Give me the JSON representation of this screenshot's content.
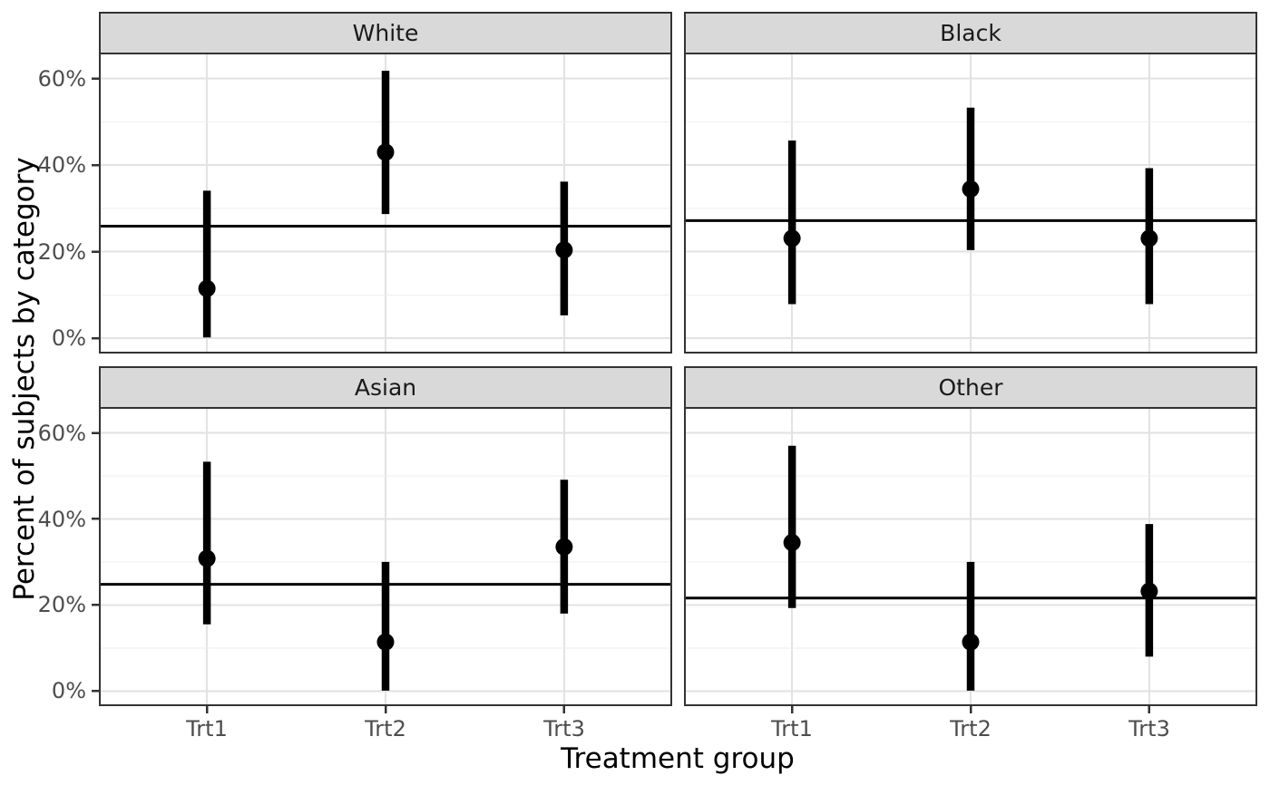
{
  "chart_data": {
    "type": "pointrange",
    "title": "",
    "xlabel": "Treatment group",
    "ylabel": "Percent of subjects by category",
    "x_categories": [
      "Trt1",
      "Trt2",
      "Trt3"
    ],
    "y_ticks": [
      0,
      20,
      40,
      60
    ],
    "y_tick_labels": [
      "0%",
      "20%",
      "40%",
      "60%"
    ],
    "y_minor_ticks": [
      10,
      30,
      50
    ],
    "ylim": [
      -3.3,
      65.8
    ],
    "grid": true,
    "legend": "none",
    "unit": "percent",
    "facets": [
      {
        "label": "White",
        "ref_line": 25.9,
        "points": [
          {
            "x": "Trt1",
            "est": 11.5,
            "lo": 0.2,
            "hi": 34.1
          },
          {
            "x": "Trt2",
            "est": 43.0,
            "lo": 28.7,
            "hi": 61.8
          },
          {
            "x": "Trt3",
            "est": 20.4,
            "lo": 5.3,
            "hi": 36.2
          }
        ]
      },
      {
        "label": "Black",
        "ref_line": 27.2,
        "points": [
          {
            "x": "Trt1",
            "est": 23.1,
            "lo": 7.9,
            "hi": 45.7
          },
          {
            "x": "Trt2",
            "est": 34.5,
            "lo": 20.4,
            "hi": 53.3
          },
          {
            "x": "Trt3",
            "est": 23.1,
            "lo": 7.9,
            "hi": 39.3
          }
        ]
      },
      {
        "label": "Asian",
        "ref_line": 24.8,
        "points": [
          {
            "x": "Trt1",
            "est": 30.8,
            "lo": 15.5,
            "hi": 53.3
          },
          {
            "x": "Trt2",
            "est": 11.4,
            "lo": 0.1,
            "hi": 30.0
          },
          {
            "x": "Trt3",
            "est": 33.5,
            "lo": 18.0,
            "hi": 49.1
          }
        ]
      },
      {
        "label": "Other",
        "ref_line": 21.6,
        "points": [
          {
            "x": "Trt1",
            "est": 34.5,
            "lo": 19.3,
            "hi": 57.0
          },
          {
            "x": "Trt2",
            "est": 11.4,
            "lo": 0.1,
            "hi": 30.0
          },
          {
            "x": "Trt3",
            "est": 23.2,
            "lo": 8.0,
            "hi": 38.8
          }
        ]
      }
    ],
    "colors": {
      "point": "#000000",
      "range_bar": "#000000",
      "ref_line": "#000000",
      "grid_major": "#e2e2e2",
      "grid_minor": "#eeeeee",
      "strip_fill": "#d9d9d9",
      "panel_border": "#333333",
      "tick_mark": "#333333",
      "tick_label": "#4d4d4d",
      "strip_text": "#1a1a1a",
      "axis_title": "#000000",
      "panel_bg": "#ffffff"
    }
  }
}
